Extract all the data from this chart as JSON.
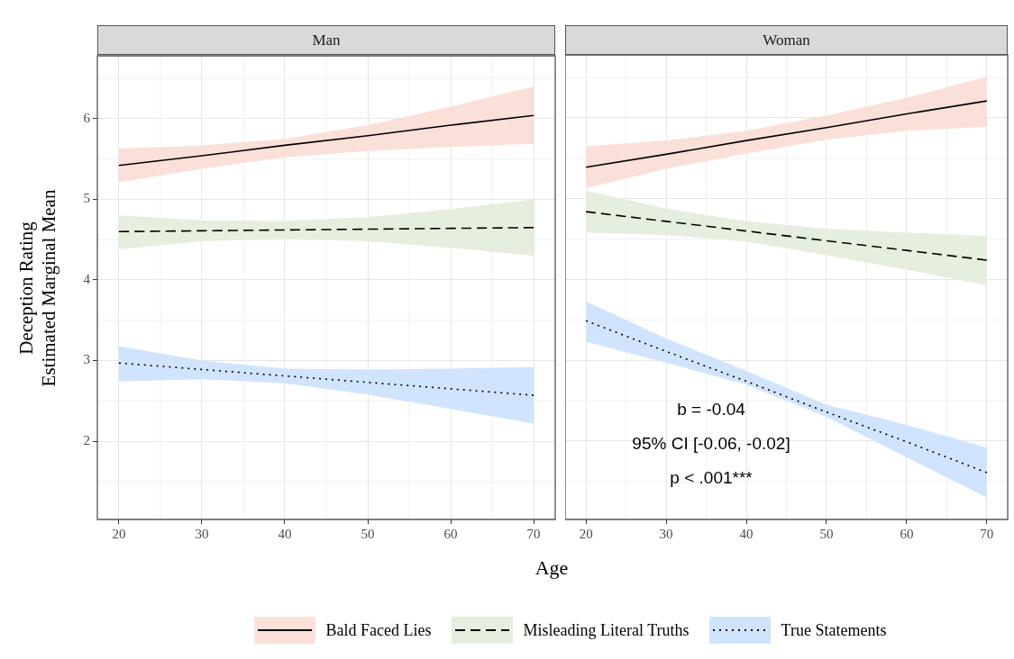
{
  "chart_data": [
    {
      "type": "line",
      "title": "Man",
      "xlabel": "Age",
      "ylabel": "Deception Rating\nEstimated Marginal Mean",
      "x": [
        20,
        30,
        40,
        50,
        60,
        70
      ],
      "xlim": [
        17.4,
        72.6
      ],
      "xticks": [
        20,
        30,
        40,
        50,
        60,
        70
      ],
      "ylim": [
        1.03,
        6.78
      ],
      "yticks": [
        2,
        3,
        4,
        5,
        6
      ],
      "grid": true,
      "legend": "bottom",
      "series": [
        {
          "name": "Bald Faced Lies",
          "color": "#000000",
          "line_style": "solid",
          "values": [
            5.42,
            5.54,
            5.67,
            5.79,
            5.92,
            6.04
          ],
          "lower": [
            5.21,
            5.38,
            5.52,
            5.6,
            5.65,
            5.69
          ],
          "upper": [
            5.63,
            5.67,
            5.75,
            5.92,
            6.15,
            6.4
          ]
        },
        {
          "name": "Misleading Literal Truths",
          "color": "#000000",
          "line_style": "dashed",
          "values": [
            4.6,
            4.61,
            4.62,
            4.63,
            4.64,
            4.65
          ],
          "lower": [
            4.38,
            4.48,
            4.51,
            4.48,
            4.4,
            4.3
          ],
          "upper": [
            4.8,
            4.74,
            4.73,
            4.78,
            4.88,
            5.0
          ]
        },
        {
          "name": "True Statements",
          "color": "#000000",
          "line_style": "dotted",
          "values": [
            2.97,
            2.89,
            2.81,
            2.73,
            2.65,
            2.57
          ],
          "lower": [
            2.74,
            2.77,
            2.72,
            2.58,
            2.4,
            2.22
          ],
          "upper": [
            3.18,
            3.0,
            2.9,
            2.89,
            2.9,
            2.92
          ]
        }
      ]
    },
    {
      "type": "line",
      "title": "Woman",
      "x": [
        20,
        30,
        40,
        50,
        60,
        70
      ],
      "xlim": [
        17.4,
        72.6
      ],
      "xticks": [
        20,
        30,
        40,
        50,
        60,
        70
      ],
      "ylim": [
        1.03,
        6.78
      ],
      "yticks": [
        2,
        3,
        4,
        5,
        6
      ],
      "grid": true,
      "tick_labels": "x",
      "annotations": [
        "b = -0.04",
        "95% CI [-0.06, -0.02]",
        "p < .001***"
      ],
      "series": [
        {
          "color": "#000000",
          "line_style": "solid",
          "values": [
            5.39,
            5.55,
            5.72,
            5.88,
            6.05,
            6.21
          ],
          "lower": [
            5.13,
            5.37,
            5.56,
            5.73,
            5.84,
            5.89
          ],
          "upper": [
            5.65,
            5.72,
            5.84,
            6.03,
            6.25,
            6.51
          ]
        },
        {
          "color": "#000000",
          "line_style": "dashed",
          "values": [
            4.84,
            4.72,
            4.6,
            4.48,
            4.36,
            4.24
          ],
          "lower": [
            4.58,
            4.55,
            4.47,
            4.3,
            4.12,
            3.93
          ],
          "upper": [
            5.1,
            4.88,
            4.72,
            4.63,
            4.58,
            4.54
          ]
        },
        {
          "color": "#000000",
          "line_style": "dotted",
          "values": [
            3.49,
            3.11,
            2.74,
            2.36,
            1.99,
            1.61
          ],
          "lower": [
            3.23,
            2.97,
            2.7,
            2.3,
            1.8,
            1.3
          ],
          "upper": [
            3.73,
            3.27,
            2.87,
            2.45,
            2.2,
            1.92
          ]
        }
      ]
    }
  ]
}
